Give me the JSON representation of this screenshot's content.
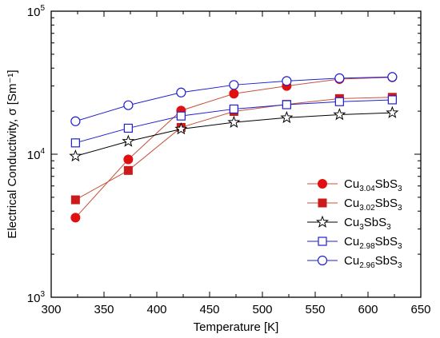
{
  "chart_data": {
    "type": "line",
    "xlabel": "Temperature [K]",
    "ylabel": "Electrical Conductivity, σ [Sm⁻¹]",
    "xlim": [
      300,
      650
    ],
    "ylim": [
      1000,
      100000
    ],
    "yscale": "log",
    "x_ticks": [
      300,
      350,
      400,
      450,
      500,
      550,
      600,
      650
    ],
    "x_tick_labels": [
      "300",
      "350",
      "400",
      "450",
      "500",
      "550",
      "600",
      "650"
    ],
    "y_ticks": [
      1000,
      10000,
      100000
    ],
    "y_tick_labels": [
      {
        "base": "10",
        "exp": "3"
      },
      {
        "base": "10",
        "exp": "4"
      },
      {
        "base": "10",
        "exp": "5"
      }
    ],
    "grid": false,
    "legend_position": "bottom-right",
    "x": [
      323,
      373,
      423,
      473,
      523,
      573,
      623
    ],
    "series": [
      {
        "name": "Cu3.04SbS3",
        "legend_parts": [
          {
            "t": "Cu",
            "sub": false
          },
          {
            "t": "3.04",
            "sub": true
          },
          {
            "t": "SbS",
            "sub": false
          },
          {
            "t": "3",
            "sub": true
          }
        ],
        "marker": "filled-circle",
        "color": "#e01010",
        "line_color": "#c8513b",
        "values": [
          3600,
          9200,
          20200,
          26500,
          30000,
          33500,
          34500
        ]
      },
      {
        "name": "Cu3.02SbS3",
        "legend_parts": [
          {
            "t": "Cu",
            "sub": false
          },
          {
            "t": "3.02",
            "sub": true
          },
          {
            "t": "SbS",
            "sub": false
          },
          {
            "t": "3",
            "sub": true
          }
        ],
        "marker": "filled-square",
        "color": "#cc1a1a",
        "line_color": "#c8513b",
        "values": [
          4800,
          7700,
          15400,
          19900,
          22300,
          24500,
          25000
        ]
      },
      {
        "name": "Cu3SbS3",
        "legend_parts": [
          {
            "t": "Cu",
            "sub": false
          },
          {
            "t": "3",
            "sub": true
          },
          {
            "t": "SbS",
            "sub": false
          },
          {
            "t": "3",
            "sub": true
          }
        ],
        "marker": "open-star",
        "color": "#000000",
        "line_color": "#000000",
        "values": [
          9700,
          12300,
          15000,
          16700,
          18000,
          18900,
          19500
        ]
      },
      {
        "name": "Cu2.98SbS3",
        "legend_parts": [
          {
            "t": "Cu",
            "sub": false
          },
          {
            "t": "2.98",
            "sub": true
          },
          {
            "t": "SbS",
            "sub": false
          },
          {
            "t": "3",
            "sub": true
          }
        ],
        "marker": "open-square",
        "color": "#1f1fd0",
        "line_color": "#1f1fd0",
        "values": [
          12000,
          15200,
          18500,
          20700,
          22200,
          23300,
          24000
        ]
      },
      {
        "name": "Cu2.96SbS3",
        "legend_parts": [
          {
            "t": "Cu",
            "sub": false
          },
          {
            "t": "2.96",
            "sub": true
          },
          {
            "t": "SbS",
            "sub": false
          },
          {
            "t": "3",
            "sub": true
          }
        ],
        "marker": "open-circle",
        "color": "#1f1fd0",
        "line_color": "#1f1fd0",
        "values": [
          17000,
          22000,
          27000,
          30500,
          32500,
          34000,
          34700
        ]
      }
    ]
  }
}
